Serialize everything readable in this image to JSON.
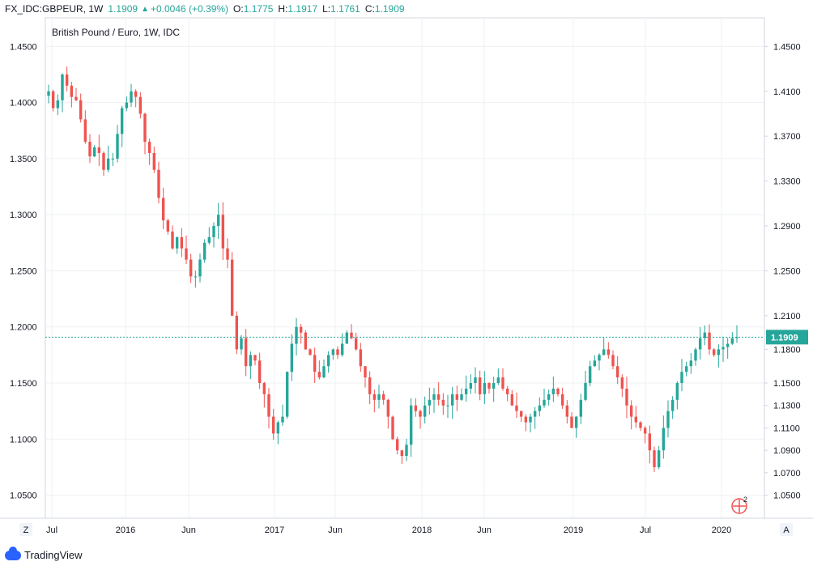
{
  "header": {
    "symbol": "FX_IDC:GBPEUR, 1W",
    "last": "1.1909",
    "change": "+0.0046 (+0.39%)",
    "o_label": "O:",
    "o_value": "1.1775",
    "h_label": "H:",
    "h_value": "1.1917",
    "l_label": "L:",
    "l_value": "1.1761",
    "c_label": "C:",
    "c_value": "1.1909"
  },
  "chart_data": {
    "type": "candlestick",
    "title": "British Pound / Euro, 1W, IDC",
    "left_axis": {
      "ticks": [
        "1.4500",
        "1.4000",
        "1.3500",
        "1.3000",
        "1.2500",
        "1.2000",
        "1.1500",
        "1.1000",
        "1.0500"
      ],
      "values": [
        1.45,
        1.4,
        1.35,
        1.3,
        1.25,
        1.2,
        1.15,
        1.1,
        1.05
      ],
      "ylim": [
        1.0295,
        1.4755
      ]
    },
    "right_axis": {
      "ticks": [
        "1.4500",
        "1.4100",
        "1.3700",
        "1.3300",
        "1.2900",
        "1.2500",
        "1.2100",
        "1.1800",
        "1.1500",
        "1.1300",
        "1.1100",
        "1.0900",
        "1.0700",
        "1.0500"
      ],
      "values": [
        1.45,
        1.41,
        1.37,
        1.33,
        1.29,
        1.25,
        1.21,
        1.18,
        1.15,
        1.13,
        1.11,
        1.09,
        1.07,
        1.05
      ]
    },
    "x_ticks": [
      "Jul",
      "2016",
      "Jun",
      "2017",
      "Jun",
      "2018",
      "Jun",
      "2019",
      "Jul",
      "2020"
    ],
    "last_price": 1.1909,
    "last_price_label": "1.1909",
    "up_color": "#26a69a",
    "down_color": "#ef5350",
    "price_line_color": "#26a69a",
    "closes": [
      1.41,
      1.395,
      1.402,
      1.425,
      1.415,
      1.405,
      1.402,
      1.385,
      1.365,
      1.352,
      1.36,
      1.355,
      1.34,
      1.35,
      1.35,
      1.372,
      1.395,
      1.4,
      1.41,
      1.405,
      1.39,
      1.365,
      1.355,
      1.34,
      1.315,
      1.295,
      1.285,
      1.27,
      1.28,
      1.27,
      1.26,
      1.245,
      1.245,
      1.26,
      1.275,
      1.28,
      1.29,
      1.3,
      1.27,
      1.26,
      1.21,
      1.18,
      1.19,
      1.165,
      1.175,
      1.17,
      1.15,
      1.14,
      1.12,
      1.105,
      1.115,
      1.12,
      1.16,
      1.185,
      1.2,
      1.195,
      1.18,
      1.175,
      1.16,
      1.155,
      1.165,
      1.175,
      1.18,
      1.175,
      1.185,
      1.195,
      1.19,
      1.18,
      1.165,
      1.155,
      1.14,
      1.135,
      1.14,
      1.135,
      1.12,
      1.1,
      1.09,
      1.085,
      1.095,
      1.13,
      1.125,
      1.12,
      1.13,
      1.135,
      1.14,
      1.135,
      1.13,
      1.13,
      1.14,
      1.135,
      1.14,
      1.145,
      1.15,
      1.155,
      1.14,
      1.15,
      1.145,
      1.15,
      1.155,
      1.145,
      1.14,
      1.13,
      1.125,
      1.12,
      1.115,
      1.12,
      1.125,
      1.13,
      1.135,
      1.14,
      1.145,
      1.14,
      1.13,
      1.12,
      1.11,
      1.12,
      1.135,
      1.15,
      1.165,
      1.17,
      1.175,
      1.18,
      1.175,
      1.165,
      1.155,
      1.145,
      1.13,
      1.12,
      1.115,
      1.11,
      1.105,
      1.09,
      1.075,
      1.09,
      1.11,
      1.125,
      1.135,
      1.15,
      1.16,
      1.165,
      1.17,
      1.18,
      1.19,
      1.195,
      1.18,
      1.175,
      1.18,
      1.182,
      1.185,
      1.19,
      1.1909
    ],
    "lows_below": 0.012,
    "highs_above": 0.012
  },
  "footer": {
    "brand": "TradingView",
    "z_button": "Z",
    "a_button": "A",
    "badge_count": "2"
  }
}
